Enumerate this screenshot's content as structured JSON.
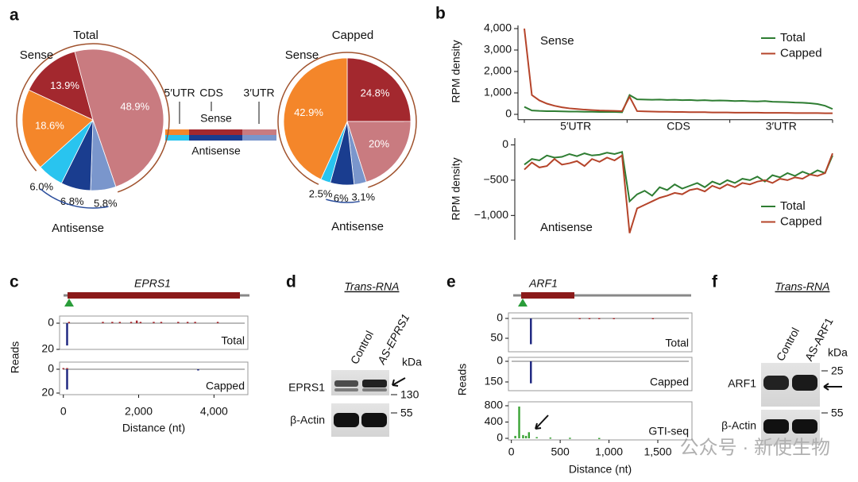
{
  "panel_labels": [
    "a",
    "b",
    "c",
    "d",
    "e",
    "f"
  ],
  "region_legend": {
    "columns": [
      "5′UTR",
      "CDS",
      "3′UTR"
    ],
    "rows": [
      "Sense",
      "Antisense"
    ],
    "colors": [
      [
        "#f4862a",
        "#a3282e",
        "#c97b80"
      ],
      [
        "#29c4ef",
        "#1a3d8f",
        "#7a96cc"
      ]
    ]
  },
  "chart_data": [
    {
      "type": "pie",
      "title": "Total",
      "values": [
        13.9,
        48.9,
        5.8,
        6.8,
        6.0,
        18.6
      ],
      "value_labels": [
        "13.9%",
        "48.9%",
        "5.8%",
        "6.8%",
        "6.0%",
        "18.6%"
      ],
      "colors": [
        "#a3282e",
        "#c97b80",
        "#7a96cc",
        "#1a3d8f",
        "#29c4ef",
        "#f4862a"
      ],
      "group_labels": [
        "Sense",
        "Antisense"
      ]
    },
    {
      "type": "pie",
      "title": "Capped",
      "values": [
        24.8,
        20,
        3.1,
        6,
        2.5,
        42.9
      ],
      "value_labels": [
        "24.8%",
        "20%",
        "3.1%",
        "6%",
        "2.5%",
        "42.9%"
      ],
      "colors": [
        "#a3282e",
        "#c97b80",
        "#7a96cc",
        "#1a3d8f",
        "#29c4ef",
        "#f4862a"
      ],
      "group_labels": [
        "Sense",
        "Antisense"
      ]
    },
    {
      "type": "line",
      "annotation": "Sense",
      "ylabel": "RPM density",
      "regions": [
        "5′UTR",
        "CDS",
        "3′UTR"
      ],
      "ylim": [
        -100,
        4000
      ],
      "yticks": [
        0,
        {
          "value": 1000,
          "label": "1,000"
        },
        {
          "value": 2000,
          "label": "2,000"
        },
        {
          "value": 3000,
          "label": "3,000"
        },
        {
          "value": 4000,
          "label": "4,000"
        }
      ],
      "legend_position": "upper right",
      "series": [
        {
          "name": "Total",
          "color": "#2e7d32",
          "values": [
            350,
            180,
            160,
            150,
            150,
            140,
            130,
            130,
            120,
            120,
            110,
            110,
            110,
            100,
            900,
            700,
            690,
            680,
            690,
            670,
            680,
            660,
            670,
            650,
            660,
            640,
            650,
            640,
            620,
            630,
            610,
            600,
            620,
            590,
            580,
            570,
            550,
            540,
            520,
            480,
            400,
            250
          ]
        },
        {
          "name": "Capped",
          "color": "#b5442a",
          "values": [
            4000,
            900,
            650,
            500,
            400,
            330,
            280,
            250,
            220,
            200,
            180,
            170,
            160,
            150,
            820,
            150,
            140,
            130,
            120,
            120,
            110,
            110,
            100,
            100,
            100,
            90,
            90,
            90,
            80,
            80,
            80,
            80,
            70,
            70,
            70,
            70,
            60,
            60,
            60,
            60,
            50,
            50
          ]
        }
      ]
    },
    {
      "type": "line",
      "annotation": "Antisense",
      "ylabel": "RPM density",
      "ylim": [
        -1300,
        50
      ],
      "yticks": [
        0,
        {
          "value": -500,
          "label": "−500"
        },
        {
          "value": -1000,
          "label": "−1,000"
        }
      ],
      "legend_position": "lower right",
      "series": [
        {
          "name": "Total",
          "color": "#2e7d32",
          "values": [
            -280,
            -200,
            -220,
            -150,
            -180,
            -170,
            -130,
            -160,
            -120,
            -150,
            -140,
            -110,
            -130,
            -100,
            -800,
            -700,
            -650,
            -720,
            -600,
            -640,
            -560,
            -620,
            -580,
            -540,
            -600,
            -520,
            -560,
            -500,
            -540,
            -480,
            -500,
            -450,
            -520,
            -430,
            -460,
            -400,
            -440,
            -380,
            -420,
            -360,
            -400,
            -150
          ]
        },
        {
          "name": "Capped",
          "color": "#b5442a",
          "values": [
            -350,
            -250,
            -320,
            -300,
            -200,
            -280,
            -260,
            -230,
            -300,
            -200,
            -240,
            -180,
            -220,
            -150,
            -1250,
            -900,
            -850,
            -800,
            -750,
            -720,
            -680,
            -700,
            -640,
            -620,
            -660,
            -580,
            -620,
            -560,
            -600,
            -540,
            -560,
            -520,
            -500,
            -540,
            -480,
            -500,
            -460,
            -480,
            -420,
            -440,
            -400,
            -120
          ]
        }
      ]
    },
    {
      "type": "track",
      "gene": "EPRS1",
      "xlabel": "Distance (nt)",
      "ylabel": "Reads",
      "xlim": [
        -100,
        4900
      ],
      "xticks": [
        0,
        {
          "value": 2000,
          "label": "2,000"
        },
        {
          "value": 4000,
          "label": "4,000"
        }
      ],
      "tracks": [
        {
          "name": "Total",
          "ylim": [
            0,
            20
          ],
          "yticks": [
            0,
            20
          ],
          "series": [
            {
              "color": "#1a237e",
              "x": [
                100
              ],
              "values": [
                17
              ]
            },
            {
              "color": "#a3282e",
              "direction": "up",
              "x": [
                150,
                1050,
                1300,
                1500,
                1800,
                1950,
                2050,
                2400,
                2600,
                3050,
                3300,
                3500,
                4100
              ],
              "values": [
                1,
                1,
                1,
                1,
                1,
                2,
                1,
                1,
                1,
                1,
                1,
                1,
                1
              ]
            }
          ]
        },
        {
          "name": "Capped",
          "ylim": [
            0,
            20
          ],
          "yticks": [
            0,
            20
          ],
          "series": [
            {
              "color": "#1a237e",
              "x": [
                100,
                3580
              ],
              "values": [
                17,
                1
              ]
            },
            {
              "color": "#a3282e",
              "direction": "up",
              "x": [
                0,
                100
              ],
              "values": [
                1,
                1
              ]
            }
          ]
        }
      ]
    },
    {
      "type": "track",
      "gene": "ARF1",
      "xlabel": "Distance (nt)",
      "ylabel": "Reads",
      "xlim": [
        -30,
        1850
      ],
      "xticks": [
        0,
        500,
        {
          "value": 1000,
          "label": "1,000"
        },
        {
          "value": 1500,
          "label": "1,500"
        }
      ],
      "tracks": [
        {
          "name": "Total",
          "ylim": [
            0,
            70
          ],
          "yticks": [
            0,
            50
          ],
          "series": [
            {
              "color": "#1a237e",
              "x": [
                200
              ],
              "values": [
                65
              ]
            },
            {
              "color": "#a3282e",
              "direction": "up",
              "x": [
                700,
                800,
                900,
                1050,
                1450
              ],
              "values": [
                1,
                1,
                1,
                1,
                1
              ]
            }
          ]
        },
        {
          "name": "Capped",
          "ylim": [
            0,
            165
          ],
          "yticks": [
            0,
            150
          ],
          "series": [
            {
              "color": "#1a237e",
              "x": [
                200
              ],
              "values": [
                160
              ]
            }
          ]
        },
        {
          "name": "GTI-seq",
          "ylim": [
            0,
            850
          ],
          "yticks": [
            0,
            400,
            800
          ],
          "series": [
            {
              "color": "#3aa335",
              "direction": "up",
              "x": [
                40,
                80,
                120,
                150,
                180,
                260,
                400,
                600,
                900
              ],
              "values": [
                60,
                780,
                80,
                60,
                150,
                30,
                20,
                15,
                10
              ]
            }
          ]
        }
      ]
    }
  ],
  "blots": [
    {
      "header": "Trans-RNA",
      "lanes": [
        "Control",
        "AS-EPRS1"
      ],
      "unit": "kDa",
      "rows": [
        "EPRS1",
        "β-Actin"
      ],
      "markers": [
        "130",
        "55"
      ]
    },
    {
      "header": "Trans-RNA",
      "lanes": [
        "Control",
        "AS-ARF1"
      ],
      "unit": "kDa",
      "rows": [
        "ARF1",
        "β-Actin"
      ],
      "markers": [
        "25",
        "55"
      ]
    }
  ],
  "watermark": "公众号 · 新使生物"
}
